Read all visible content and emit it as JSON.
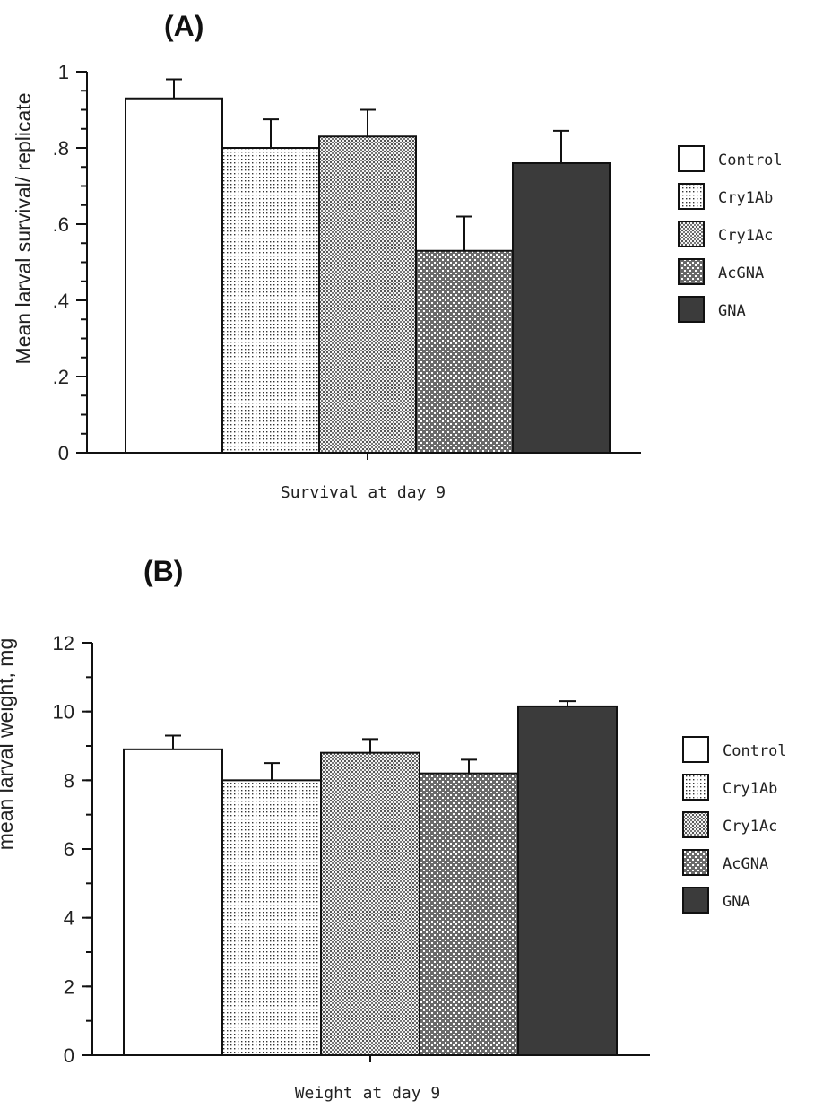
{
  "chart_data": [
    {
      "type": "bar",
      "panel": "(A)",
      "ylabel": "Mean larval survival/ replicate",
      "xlabel": "Survival at day 9",
      "ylim": [
        0,
        1
      ],
      "ytick_labels": [
        "0",
        ".2",
        ".4",
        ".6",
        ".8",
        "1"
      ],
      "ytick_values": [
        0,
        0.2,
        0.4,
        0.6,
        0.8,
        1.0
      ],
      "minor_tick_step": 0.05,
      "grid": false,
      "legend_position": "right",
      "series": [
        {
          "name": "Control",
          "values": [
            0.93
          ],
          "errors": [
            0.05
          ]
        },
        {
          "name": "Cry1Ab",
          "values": [
            0.8
          ],
          "errors": [
            0.075
          ]
        },
        {
          "name": "Cry1Ac",
          "values": [
            0.83
          ],
          "errors": [
            0.07
          ]
        },
        {
          "name": "AcGNA",
          "values": [
            0.53
          ],
          "errors": [
            0.09
          ]
        },
        {
          "name": "GNA",
          "values": [
            0.76
          ],
          "errors": [
            0.085
          ]
        }
      ]
    },
    {
      "type": "bar",
      "panel": "(B)",
      "ylabel": "mean larval weight, mg",
      "xlabel": "Weight at day 9",
      "ylim": [
        0,
        12
      ],
      "ytick_labels": [
        "0",
        "2",
        "4",
        "6",
        "8",
        "10",
        "12"
      ],
      "ytick_values": [
        0,
        2,
        4,
        6,
        8,
        10,
        12
      ],
      "minor_tick_step": 1,
      "grid": false,
      "legend_position": "right",
      "series": [
        {
          "name": "Control",
          "values": [
            8.9
          ],
          "errors": [
            0.4
          ]
        },
        {
          "name": "Cry1Ab",
          "values": [
            8.0
          ],
          "errors": [
            0.5
          ]
        },
        {
          "name": "Cry1Ac",
          "values": [
            8.8
          ],
          "errors": [
            0.4
          ]
        },
        {
          "name": "AcGNA",
          "values": [
            8.2
          ],
          "errors": [
            0.4
          ]
        },
        {
          "name": "GNA",
          "values": [
            10.15
          ],
          "errors": [
            0.15
          ]
        }
      ]
    }
  ],
  "legend": {
    "labels": [
      "Control",
      "Cry1Ab",
      "Cry1Ac",
      "AcGNA",
      "GNA"
    ],
    "fills": [
      "white",
      "fine-dots",
      "medium-dots",
      "coarse-dots",
      "dark"
    ]
  },
  "colors": {
    "bar_outline": "#111111",
    "dark_fill": "#3b3b3b",
    "background": "#ffffff"
  }
}
